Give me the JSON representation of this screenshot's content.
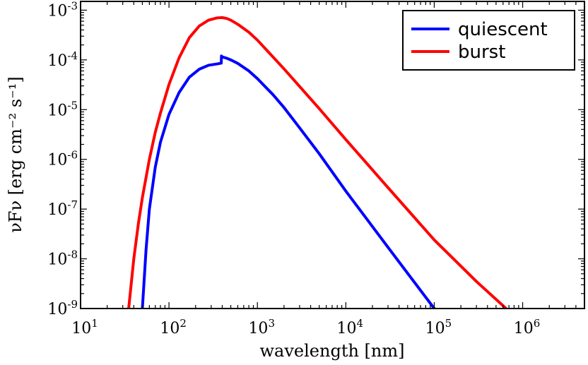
{
  "chart_data": {
    "type": "line",
    "xscale": "log",
    "yscale": "log",
    "xlim": [
      10,
      5000000
    ],
    "ylim": [
      1e-09,
      0.0015
    ],
    "xlabel": "wavelength [nm]",
    "ylabel": "νFν [erg cm⁻² s⁻¹]",
    "xticks": [
      {
        "base": "10",
        "exp": "1"
      },
      {
        "base": "10",
        "exp": "2"
      },
      {
        "base": "10",
        "exp": "3"
      },
      {
        "base": "10",
        "exp": "4"
      },
      {
        "base": "10",
        "exp": "5"
      },
      {
        "base": "10",
        "exp": "6"
      }
    ],
    "yticks": [
      {
        "base": "10",
        "exp": "-9"
      },
      {
        "base": "10",
        "exp": "-8"
      },
      {
        "base": "10",
        "exp": "-7"
      },
      {
        "base": "10",
        "exp": "-6"
      },
      {
        "base": "10",
        "exp": "-5"
      },
      {
        "base": "10",
        "exp": "-4"
      },
      {
        "base": "10",
        "exp": "-3"
      }
    ],
    "legend_position": "top-right",
    "grid": false,
    "series": [
      {
        "name": "quiescent",
        "color": "#0000ff",
        "x": [
          50,
          55,
          60,
          70,
          80,
          100,
          130,
          170,
          220,
          280,
          350,
          390,
          392,
          400,
          450,
          500,
          600,
          800,
          1000,
          1500,
          2000,
          3000,
          5000,
          10000,
          30000,
          100000,
          300000
        ],
        "y": [
          1e-09,
          1.5e-08,
          1e-07,
          7e-07,
          2.2e-06,
          8e-06,
          2.2e-05,
          4.5e-05,
          6.5e-05,
          7.8e-05,
          8.3e-05,
          8.6e-05,
          0.00012,
          0.000115,
          0.000108,
          0.0001,
          8.5e-05,
          6e-05,
          4.2e-05,
          2e-05,
          1.1e-05,
          4.3e-06,
          1.3e-06,
          2.3e-07,
          1.7e-08,
          1e-09,
          5.6e-11
        ]
      },
      {
        "name": "burst",
        "color": "#ff0000",
        "x": [
          35,
          40,
          45,
          50,
          60,
          70,
          80,
          100,
          130,
          170,
          220,
          280,
          350,
          400,
          450,
          500,
          600,
          800,
          1000,
          2000,
          5000,
          10000,
          30000,
          100000,
          300000,
          650000
        ],
        "y": [
          1e-09,
          1e-08,
          5e-08,
          1.7e-07,
          1e-06,
          3.5e-06,
          8.5e-06,
          3.2e-05,
          0.00011,
          0.00028,
          0.00048,
          0.00063,
          0.0007,
          0.00071,
          0.00068,
          0.00063,
          0.00052,
          0.00036,
          0.00025,
          6.6e-05,
          1.05e-05,
          2.5e-06,
          2.7e-07,
          2.4e-08,
          3.5e-09,
          1e-09
        ]
      }
    ]
  }
}
